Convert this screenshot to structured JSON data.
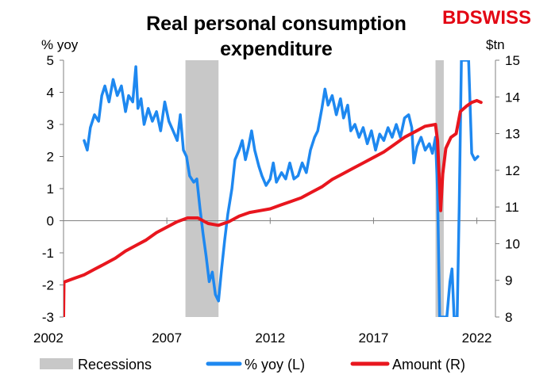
{
  "logo": {
    "text": "BDSWISS",
    "color": "#e30613"
  },
  "chart_data": {
    "type": "line",
    "title": "Real personal consumption expenditure",
    "title_lines": [
      "Real personal consumption",
      "expenditure"
    ],
    "left_axis": {
      "unit": "% yoy",
      "range": [
        -3,
        5
      ],
      "ticks": [
        "5",
        "4",
        "3",
        "2",
        "1",
        "0",
        "-1",
        "-2",
        "-3"
      ]
    },
    "right_axis": {
      "unit": "$tn",
      "range": [
        8,
        15
      ],
      "ticks": [
        "15",
        "14",
        "13",
        "12",
        "11",
        "10",
        "9",
        "8"
      ]
    },
    "x_axis": {
      "range": [
        2002,
        2022.9
      ],
      "ticks": [
        "2002",
        "2007",
        "2012",
        "2017",
        "2022"
      ]
    },
    "recessions": [
      [
        2007.9,
        2009.5
      ],
      [
        2020.0,
        2020.4
      ]
    ],
    "legend": [
      "Recessions",
      "% yoy (L)",
      "Amount (R)"
    ],
    "colors": {
      "recession": "#c8c8c8",
      "yoy": "#1e88f0",
      "amount": "#e8161e"
    },
    "series": [
      {
        "name": "% yoy (L)",
        "axis": "left",
        "points": [
          [
            2003.0,
            2.5
          ],
          [
            2003.15,
            2.2
          ],
          [
            2003.3,
            2.9
          ],
          [
            2003.5,
            3.3
          ],
          [
            2003.7,
            3.1
          ],
          [
            2003.85,
            3.9
          ],
          [
            2004.0,
            4.2
          ],
          [
            2004.2,
            3.7
          ],
          [
            2004.4,
            4.4
          ],
          [
            2004.6,
            3.9
          ],
          [
            2004.8,
            4.2
          ],
          [
            2005.0,
            3.4
          ],
          [
            2005.15,
            3.9
          ],
          [
            2005.35,
            3.7
          ],
          [
            2005.5,
            4.8
          ],
          [
            2005.6,
            3.5
          ],
          [
            2005.75,
            3.8
          ],
          [
            2005.9,
            3.0
          ],
          [
            2006.1,
            3.5
          ],
          [
            2006.3,
            3.1
          ],
          [
            2006.5,
            3.4
          ],
          [
            2006.7,
            2.8
          ],
          [
            2006.9,
            3.7
          ],
          [
            2007.1,
            3.1
          ],
          [
            2007.3,
            2.8
          ],
          [
            2007.5,
            2.5
          ],
          [
            2007.65,
            3.3
          ],
          [
            2007.8,
            2.2
          ],
          [
            2007.95,
            2.0
          ],
          [
            2008.1,
            1.4
          ],
          [
            2008.3,
            1.2
          ],
          [
            2008.45,
            1.3
          ],
          [
            2008.6,
            0.4
          ],
          [
            2008.75,
            -0.4
          ],
          [
            2008.9,
            -1.1
          ],
          [
            2009.05,
            -1.9
          ],
          [
            2009.2,
            -1.6
          ],
          [
            2009.35,
            -2.3
          ],
          [
            2009.5,
            -2.5
          ],
          [
            2009.65,
            -1.5
          ],
          [
            2009.8,
            -0.6
          ],
          [
            2009.95,
            0.2
          ],
          [
            2010.15,
            1.0
          ],
          [
            2010.3,
            1.9
          ],
          [
            2010.5,
            2.2
          ],
          [
            2010.65,
            2.5
          ],
          [
            2010.8,
            1.9
          ],
          [
            2010.95,
            2.3
          ],
          [
            2011.1,
            2.8
          ],
          [
            2011.25,
            2.2
          ],
          [
            2011.45,
            1.7
          ],
          [
            2011.6,
            1.4
          ],
          [
            2011.8,
            1.1
          ],
          [
            2012.0,
            1.3
          ],
          [
            2012.15,
            1.8
          ],
          [
            2012.3,
            1.2
          ],
          [
            2012.55,
            1.5
          ],
          [
            2012.75,
            1.3
          ],
          [
            2012.95,
            1.8
          ],
          [
            2013.15,
            1.3
          ],
          [
            2013.35,
            1.4
          ],
          [
            2013.55,
            1.8
          ],
          [
            2013.75,
            1.5
          ],
          [
            2013.95,
            2.2
          ],
          [
            2014.15,
            2.6
          ],
          [
            2014.3,
            2.8
          ],
          [
            2014.5,
            3.5
          ],
          [
            2014.65,
            4.1
          ],
          [
            2014.8,
            3.6
          ],
          [
            2015.0,
            3.9
          ],
          [
            2015.2,
            3.3
          ],
          [
            2015.4,
            3.8
          ],
          [
            2015.55,
            3.2
          ],
          [
            2015.75,
            3.6
          ],
          [
            2015.9,
            2.8
          ],
          [
            2016.1,
            3.0
          ],
          [
            2016.3,
            2.6
          ],
          [
            2016.5,
            2.9
          ],
          [
            2016.7,
            2.4
          ],
          [
            2016.9,
            2.8
          ],
          [
            2017.1,
            2.2
          ],
          [
            2017.3,
            2.7
          ],
          [
            2017.5,
            2.5
          ],
          [
            2017.7,
            2.9
          ],
          [
            2017.9,
            2.6
          ],
          [
            2018.1,
            3.0
          ],
          [
            2018.3,
            2.6
          ],
          [
            2018.5,
            3.2
          ],
          [
            2018.7,
            3.3
          ],
          [
            2018.85,
            2.9
          ],
          [
            2018.95,
            1.8
          ],
          [
            2019.1,
            2.3
          ],
          [
            2019.3,
            2.6
          ],
          [
            2019.5,
            2.2
          ],
          [
            2019.7,
            2.4
          ],
          [
            2019.85,
            2.1
          ],
          [
            2020.0,
            2.6
          ],
          [
            2020.1,
            0.9
          ],
          [
            2020.2,
            -3.0
          ],
          [
            2020.55,
            -3.0
          ],
          [
            2020.7,
            -1.9
          ],
          [
            2020.8,
            -1.5
          ],
          [
            2020.9,
            -3.0
          ],
          [
            2021.05,
            -3.0
          ],
          [
            2021.15,
            0.5
          ],
          [
            2021.25,
            5.0
          ],
          [
            2021.6,
            5.0
          ],
          [
            2021.75,
            2.1
          ],
          [
            2021.9,
            1.9
          ],
          [
            2022.05,
            2.0
          ]
        ]
      },
      {
        "name": "Amount (R)",
        "axis": "right",
        "points": [
          [
            2002.0,
            8.0
          ],
          [
            2002.02,
            8.95
          ],
          [
            2002.5,
            9.05
          ],
          [
            2003.0,
            9.15
          ],
          [
            2003.5,
            9.3
          ],
          [
            2004.0,
            9.45
          ],
          [
            2004.5,
            9.6
          ],
          [
            2005.0,
            9.8
          ],
          [
            2005.5,
            9.95
          ],
          [
            2006.0,
            10.1
          ],
          [
            2006.5,
            10.3
          ],
          [
            2007.0,
            10.45
          ],
          [
            2007.5,
            10.6
          ],
          [
            2008.0,
            10.7
          ],
          [
            2008.5,
            10.7
          ],
          [
            2009.0,
            10.55
          ],
          [
            2009.5,
            10.5
          ],
          [
            2010.0,
            10.6
          ],
          [
            2010.5,
            10.75
          ],
          [
            2011.0,
            10.85
          ],
          [
            2011.5,
            10.9
          ],
          [
            2012.0,
            10.95
          ],
          [
            2012.5,
            11.05
          ],
          [
            2013.0,
            11.15
          ],
          [
            2013.5,
            11.25
          ],
          [
            2014.0,
            11.4
          ],
          [
            2014.5,
            11.55
          ],
          [
            2015.0,
            11.75
          ],
          [
            2015.5,
            11.9
          ],
          [
            2016.0,
            12.05
          ],
          [
            2016.5,
            12.2
          ],
          [
            2017.0,
            12.35
          ],
          [
            2017.5,
            12.5
          ],
          [
            2018.0,
            12.7
          ],
          [
            2018.5,
            12.9
          ],
          [
            2019.0,
            13.05
          ],
          [
            2019.5,
            13.2
          ],
          [
            2020.0,
            13.25
          ],
          [
            2020.1,
            12.8
          ],
          [
            2020.25,
            10.9
          ],
          [
            2020.35,
            11.9
          ],
          [
            2020.5,
            12.6
          ],
          [
            2020.75,
            12.9
          ],
          [
            2021.0,
            13.0
          ],
          [
            2021.2,
            13.6
          ],
          [
            2021.5,
            13.75
          ],
          [
            2021.75,
            13.85
          ],
          [
            2022.0,
            13.9
          ],
          [
            2022.2,
            13.85
          ]
        ]
      }
    ]
  }
}
